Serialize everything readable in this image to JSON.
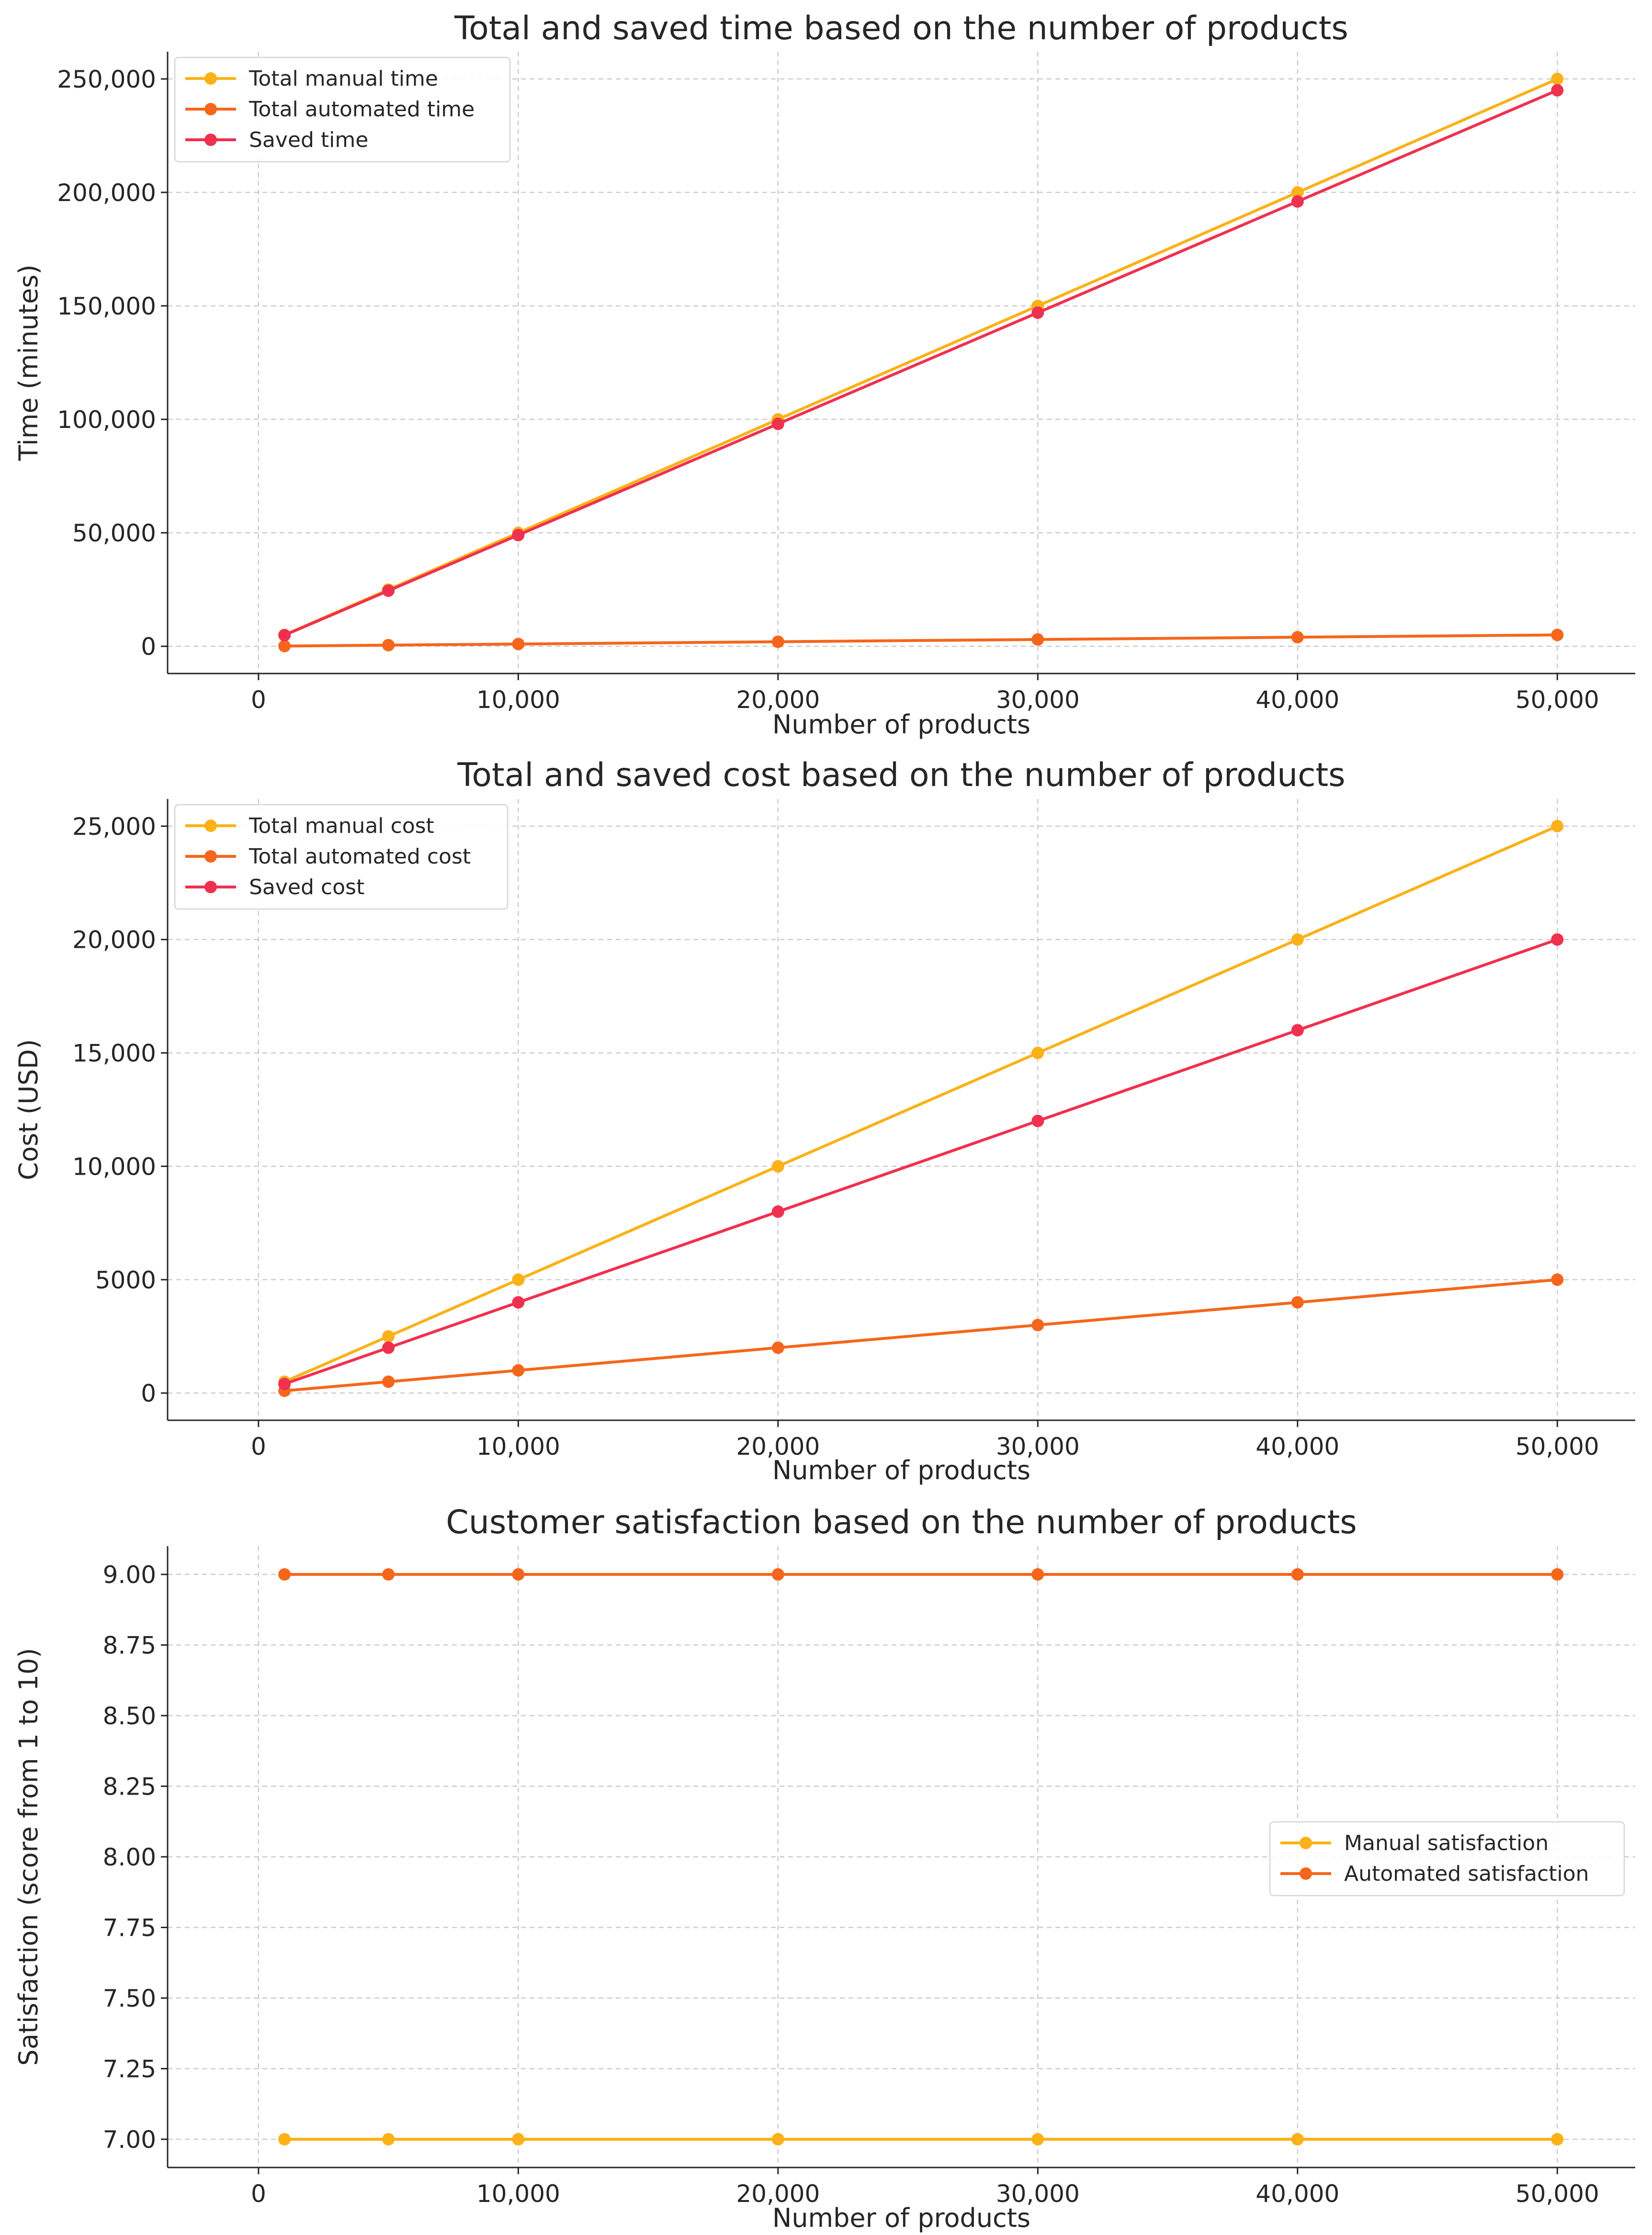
{
  "chart_data": [
    {
      "type": "line",
      "title": "Total and saved time based on the number of products",
      "xlabel": "Number of products",
      "ylabel": "Time (minutes)",
      "x": [
        1000,
        5000,
        10000,
        20000,
        30000,
        40000,
        50000
      ],
      "xlim": [
        -3500,
        53000
      ],
      "ylim": [
        -12000,
        262000
      ],
      "xticks": [
        0,
        10000,
        20000,
        30000,
        40000,
        50000
      ],
      "xtick_labels": [
        "0",
        "10,000",
        "20,000",
        "30,000",
        "40,000",
        "50,000"
      ],
      "yticks": [
        0,
        50000,
        100000,
        150000,
        200000,
        250000
      ],
      "ytick_labels": [
        "0",
        "50,000",
        "100,000",
        "150,000",
        "200,000",
        "250,000"
      ],
      "grid": true,
      "legend_position": "top-left",
      "series": [
        {
          "name": "Total manual time",
          "color": "#fbb117",
          "values": [
            5000,
            25000,
            50000,
            100000,
            150000,
            200000,
            250000
          ]
        },
        {
          "name": "Total automated time",
          "color": "#f5661c",
          "values": [
            100,
            500,
            1000,
            2000,
            3000,
            4000,
            5000
          ]
        },
        {
          "name": "Saved time",
          "color": "#f0304f",
          "values": [
            4900,
            24500,
            49000,
            98000,
            147000,
            196000,
            245000
          ]
        }
      ]
    },
    {
      "type": "line",
      "title": "Total and saved cost based on the number of products",
      "xlabel": "Number of products",
      "ylabel": "Cost (USD)",
      "x": [
        1000,
        5000,
        10000,
        20000,
        30000,
        40000,
        50000
      ],
      "xlim": [
        -3500,
        53000
      ],
      "ylim": [
        -1200,
        26200
      ],
      "xticks": [
        0,
        10000,
        20000,
        30000,
        40000,
        50000
      ],
      "xtick_labels": [
        "0",
        "10,000",
        "20,000",
        "30,000",
        "40,000",
        "50,000"
      ],
      "yticks": [
        0,
        5000,
        10000,
        15000,
        20000,
        25000
      ],
      "ytick_labels": [
        "0",
        "5000",
        "10,000",
        "15,000",
        "20,000",
        "25,000"
      ],
      "grid": true,
      "legend_position": "top-left",
      "series": [
        {
          "name": "Total manual cost",
          "color": "#fbb117",
          "values": [
            500,
            2500,
            5000,
            10000,
            15000,
            20000,
            25000
          ]
        },
        {
          "name": "Total automated cost",
          "color": "#f5661c",
          "values": [
            100,
            500,
            1000,
            2000,
            3000,
            4000,
            5000
          ]
        },
        {
          "name": "Saved cost",
          "color": "#f0304f",
          "values": [
            400,
            2000,
            4000,
            8000,
            12000,
            16000,
            20000
          ]
        }
      ]
    },
    {
      "type": "line",
      "title": "Customer satisfaction based on the number of products",
      "xlabel": "Number of products",
      "ylabel": "Satisfaction (score from 1 to 10)",
      "x": [
        1000,
        5000,
        10000,
        20000,
        30000,
        40000,
        50000
      ],
      "xlim": [
        -3500,
        53000
      ],
      "ylim": [
        6.9,
        9.1
      ],
      "xticks": [
        0,
        10000,
        20000,
        30000,
        40000,
        50000
      ],
      "xtick_labels": [
        "0",
        "10,000",
        "20,000",
        "30,000",
        "40,000",
        "50,000"
      ],
      "yticks": [
        7.0,
        7.25,
        7.5,
        7.75,
        8.0,
        8.25,
        8.5,
        8.75,
        9.0
      ],
      "ytick_labels": [
        "7.00",
        "7.25",
        "7.50",
        "7.75",
        "8.00",
        "8.25",
        "8.50",
        "8.75",
        "9.00"
      ],
      "grid": true,
      "legend_position": "center-right",
      "series": [
        {
          "name": "Manual satisfaction",
          "color": "#fbb117",
          "values": [
            7,
            7,
            7,
            7,
            7,
            7,
            7
          ]
        },
        {
          "name": "Automated satisfaction",
          "color": "#f5661c",
          "values": [
            9,
            9,
            9,
            9,
            9,
            9,
            9
          ]
        }
      ]
    }
  ]
}
